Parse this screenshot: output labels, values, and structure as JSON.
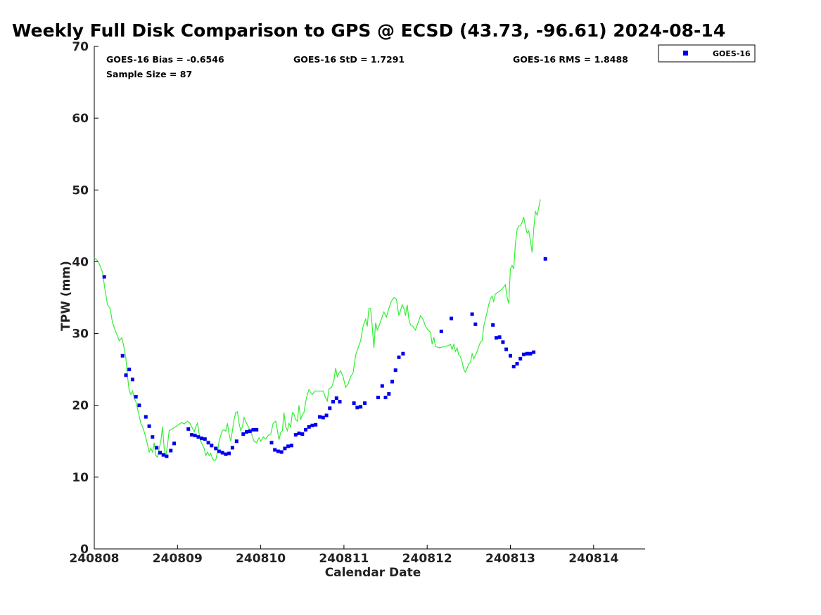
{
  "chart_data": {
    "type": "line",
    "title": "Weekly Full Disk Comparison to GPS @ ECSD (43.73, -96.61) 2024-08-14",
    "xlabel": "Calendar Date",
    "ylabel": "TPW (mm)",
    "x_tick_labels": [
      "240808",
      "240809",
      "240810",
      "240811",
      "240812",
      "240813",
      "240814"
    ],
    "x_tick_values": [
      0,
      1,
      2,
      3,
      4,
      5,
      6
    ],
    "x_axis_note": "x values are days after 240808 00Z",
    "xlim": [
      0,
      6.62
    ],
    "ylim": [
      0,
      70
    ],
    "y_ticks": [
      0,
      10,
      20,
      30,
      40,
      50,
      60,
      70
    ],
    "grid": false,
    "legend_position": "top-right",
    "stats": {
      "bias": "GOES-16 Bias = -0.6546",
      "std": "GOES-16 StD = 1.7291",
      "rms": "GOES-16 RMS = 1.8488",
      "sample": "Sample Size = 87"
    },
    "series": [
      {
        "name": "GPS",
        "style": "line",
        "color": "#33ee33",
        "points": [
          [
            0.0,
            40.6
          ],
          [
            0.05,
            40.0
          ],
          [
            0.1,
            38.5
          ],
          [
            0.13,
            36.0
          ],
          [
            0.16,
            34.0
          ],
          [
            0.19,
            33.5
          ],
          [
            0.22,
            31.5
          ],
          [
            0.25,
            30.5
          ],
          [
            0.28,
            29.6
          ],
          [
            0.3,
            29.0
          ],
          [
            0.33,
            29.4
          ],
          [
            0.35,
            28.5
          ],
          [
            0.38,
            26.5
          ],
          [
            0.4,
            24.0
          ],
          [
            0.42,
            22.0
          ],
          [
            0.44,
            21.5
          ],
          [
            0.46,
            22.0
          ],
          [
            0.48,
            21.0
          ],
          [
            0.5,
            20.5
          ],
          [
            0.52,
            19.5
          ],
          [
            0.54,
            18.5
          ],
          [
            0.56,
            17.5
          ],
          [
            0.58,
            17.0
          ],
          [
            0.6,
            16.3
          ],
          [
            0.62,
            15.5
          ],
          [
            0.64,
            14.5
          ],
          [
            0.66,
            13.5
          ],
          [
            0.68,
            14.0
          ],
          [
            0.7,
            13.5
          ],
          [
            0.72,
            14.8
          ],
          [
            0.74,
            13.0
          ],
          [
            0.76,
            12.8
          ],
          [
            0.78,
            14.0
          ],
          [
            0.8,
            15.0
          ],
          [
            0.82,
            17.0
          ],
          [
            0.84,
            14.0
          ],
          [
            0.86,
            12.9
          ],
          [
            0.88,
            14.5
          ],
          [
            0.9,
            16.5
          ],
          [
            0.95,
            16.8
          ],
          [
            1.0,
            17.2
          ],
          [
            1.05,
            17.6
          ],
          [
            1.08,
            17.4
          ],
          [
            1.12,
            17.8
          ],
          [
            1.15,
            17.5
          ],
          [
            1.18,
            16.8
          ],
          [
            1.2,
            16.3
          ],
          [
            1.22,
            17.0
          ],
          [
            1.24,
            17.5
          ],
          [
            1.26,
            16.0
          ],
          [
            1.28,
            15.0
          ],
          [
            1.3,
            14.5
          ],
          [
            1.32,
            14.0
          ],
          [
            1.34,
            13.0
          ],
          [
            1.36,
            13.5
          ],
          [
            1.38,
            13.0
          ],
          [
            1.4,
            13.3
          ],
          [
            1.42,
            12.6
          ],
          [
            1.44,
            12.3
          ],
          [
            1.46,
            12.4
          ],
          [
            1.48,
            13.5
          ],
          [
            1.5,
            15.0
          ],
          [
            1.52,
            15.8
          ],
          [
            1.54,
            16.5
          ],
          [
            1.56,
            16.6
          ],
          [
            1.58,
            16.4
          ],
          [
            1.6,
            17.5
          ],
          [
            1.62,
            16.0
          ],
          [
            1.64,
            15.0
          ],
          [
            1.66,
            16.5
          ],
          [
            1.68,
            18.0
          ],
          [
            1.7,
            19.0
          ],
          [
            1.72,
            19.1
          ],
          [
            1.74,
            17.5
          ],
          [
            1.76,
            16.5
          ],
          [
            1.78,
            17.0
          ],
          [
            1.8,
            18.3
          ],
          [
            1.83,
            17.5
          ],
          [
            1.86,
            16.8
          ],
          [
            1.89,
            16.0
          ],
          [
            1.92,
            15.0
          ],
          [
            1.95,
            14.8
          ],
          [
            1.98,
            15.5
          ],
          [
            2.0,
            15.0
          ],
          [
            2.03,
            15.6
          ],
          [
            2.06,
            15.3
          ],
          [
            2.09,
            15.8
          ],
          [
            2.12,
            16.0
          ],
          [
            2.15,
            17.5
          ],
          [
            2.18,
            17.8
          ],
          [
            2.2,
            16.5
          ],
          [
            2.22,
            15.2
          ],
          [
            2.24,
            16.2
          ],
          [
            2.26,
            16.5
          ],
          [
            2.28,
            19.0
          ],
          [
            2.3,
            17.0
          ],
          [
            2.32,
            16.5
          ],
          [
            2.34,
            17.5
          ],
          [
            2.36,
            17.0
          ],
          [
            2.38,
            19.0
          ],
          [
            2.4,
            18.8
          ],
          [
            2.42,
            18.0
          ],
          [
            2.44,
            17.8
          ],
          [
            2.46,
            20.0
          ],
          [
            2.48,
            18.0
          ],
          [
            2.5,
            18.7
          ],
          [
            2.52,
            19.0
          ],
          [
            2.54,
            20.5
          ],
          [
            2.56,
            21.5
          ],
          [
            2.58,
            22.2
          ],
          [
            2.6,
            21.8
          ],
          [
            2.62,
            21.5
          ],
          [
            2.65,
            22.0
          ],
          [
            2.7,
            22.0
          ],
          [
            2.75,
            22.0
          ],
          [
            2.78,
            21.0
          ],
          [
            2.8,
            20.6
          ],
          [
            2.82,
            22.3
          ],
          [
            2.85,
            22.5
          ],
          [
            2.88,
            23.5
          ],
          [
            2.9,
            25.2
          ],
          [
            2.92,
            24.0
          ],
          [
            2.94,
            24.5
          ],
          [
            2.96,
            24.8
          ],
          [
            2.99,
            24.0
          ],
          [
            3.02,
            22.5
          ],
          [
            3.05,
            23.0
          ],
          [
            3.08,
            24.0
          ],
          [
            3.11,
            24.5
          ],
          [
            3.14,
            27.0
          ],
          [
            3.17,
            28.0
          ],
          [
            3.2,
            29.0
          ],
          [
            3.23,
            31.0
          ],
          [
            3.26,
            32.0
          ],
          [
            3.28,
            31.0
          ],
          [
            3.3,
            33.5
          ],
          [
            3.32,
            33.5
          ],
          [
            3.34,
            31.0
          ],
          [
            3.36,
            28.0
          ],
          [
            3.38,
            31.5
          ],
          [
            3.4,
            30.5
          ],
          [
            3.42,
            31.0
          ],
          [
            3.45,
            32.0
          ],
          [
            3.48,
            33.0
          ],
          [
            3.51,
            32.3
          ],
          [
            3.54,
            33.5
          ],
          [
            3.57,
            34.5
          ],
          [
            3.6,
            35.0
          ],
          [
            3.63,
            34.8
          ],
          [
            3.66,
            32.5
          ],
          [
            3.68,
            33.2
          ],
          [
            3.7,
            34.0
          ],
          [
            3.72,
            33.5
          ],
          [
            3.74,
            32.5
          ],
          [
            3.76,
            34.0
          ],
          [
            3.78,
            32.0
          ],
          [
            3.8,
            31.2
          ],
          [
            3.83,
            31.0
          ],
          [
            3.86,
            30.5
          ],
          [
            3.89,
            31.5
          ],
          [
            3.92,
            32.5
          ],
          [
            3.95,
            32.0
          ],
          [
            3.98,
            31.0
          ],
          [
            4.01,
            30.5
          ],
          [
            4.04,
            30.2
          ],
          [
            4.06,
            28.5
          ],
          [
            4.08,
            29.5
          ],
          [
            4.1,
            28.2
          ],
          [
            4.15,
            28.0
          ],
          [
            4.2,
            28.2
          ],
          [
            4.25,
            28.3
          ],
          [
            4.28,
            28.5
          ],
          [
            4.3,
            27.8
          ],
          [
            4.32,
            28.5
          ],
          [
            4.34,
            27.5
          ],
          [
            4.36,
            28.0
          ],
          [
            4.38,
            27.0
          ],
          [
            4.4,
            26.8
          ],
          [
            4.42,
            26.0
          ],
          [
            4.44,
            25.0
          ],
          [
            4.46,
            24.6
          ],
          [
            4.48,
            25.2
          ],
          [
            4.5,
            25.8
          ],
          [
            4.52,
            26.0
          ],
          [
            4.54,
            27.2
          ],
          [
            4.56,
            26.5
          ],
          [
            4.58,
            27.0
          ],
          [
            4.6,
            27.5
          ],
          [
            4.62,
            28.2
          ],
          [
            4.64,
            28.8
          ],
          [
            4.66,
            29.0
          ],
          [
            4.68,
            31.0
          ],
          [
            4.7,
            32.0
          ],
          [
            4.72,
            33.0
          ],
          [
            4.74,
            34.0
          ],
          [
            4.76,
            34.8
          ],
          [
            4.78,
            35.2
          ],
          [
            4.8,
            34.5
          ],
          [
            4.82,
            35.5
          ],
          [
            4.86,
            35.8
          ],
          [
            4.9,
            36.2
          ],
          [
            4.94,
            36.8
          ],
          [
            4.96,
            35.0
          ],
          [
            4.98,
            34.2
          ],
          [
            5.0,
            39.0
          ],
          [
            5.02,
            39.5
          ],
          [
            5.04,
            39.0
          ],
          [
            5.06,
            42.5
          ],
          [
            5.08,
            44.5
          ],
          [
            5.1,
            45.0
          ],
          [
            5.12,
            45.0
          ],
          [
            5.14,
            45.5
          ],
          [
            5.16,
            46.2
          ],
          [
            5.18,
            45.0
          ],
          [
            5.2,
            44.0
          ],
          [
            5.22,
            44.3
          ],
          [
            5.24,
            43.0
          ],
          [
            5.26,
            41.3
          ],
          [
            5.28,
            44.5
          ],
          [
            5.3,
            47.0
          ],
          [
            5.32,
            46.5
          ],
          [
            5.34,
            47.5
          ],
          [
            5.36,
            48.7
          ]
        ]
      },
      {
        "name": "GOES-16",
        "style": "marker",
        "color": "#0000ee",
        "points": [
          [
            0.12,
            37.9
          ],
          [
            0.34,
            26.9
          ],
          [
            0.38,
            24.2
          ],
          [
            0.42,
            25.0
          ],
          [
            0.46,
            23.6
          ],
          [
            0.5,
            21.2
          ],
          [
            0.54,
            20.0
          ],
          [
            0.62,
            18.4
          ],
          [
            0.66,
            17.1
          ],
          [
            0.7,
            15.6
          ],
          [
            0.75,
            14.1
          ],
          [
            0.79,
            13.4
          ],
          [
            0.83,
            13.1
          ],
          [
            0.87,
            12.9
          ],
          [
            0.92,
            13.7
          ],
          [
            0.96,
            14.7
          ],
          [
            1.13,
            16.7
          ],
          [
            1.17,
            15.9
          ],
          [
            1.21,
            15.8
          ],
          [
            1.25,
            15.6
          ],
          [
            1.29,
            15.4
          ],
          [
            1.33,
            15.3
          ],
          [
            1.37,
            14.8
          ],
          [
            1.41,
            14.4
          ],
          [
            1.46,
            14.0
          ],
          [
            1.5,
            13.6
          ],
          [
            1.54,
            13.4
          ],
          [
            1.58,
            13.2
          ],
          [
            1.62,
            13.3
          ],
          [
            1.66,
            14.1
          ],
          [
            1.71,
            15.0
          ],
          [
            1.79,
            16.0
          ],
          [
            1.83,
            16.3
          ],
          [
            1.87,
            16.4
          ],
          [
            1.91,
            16.6
          ],
          [
            1.95,
            16.6
          ],
          [
            2.13,
            14.8
          ],
          [
            2.17,
            13.8
          ],
          [
            2.21,
            13.6
          ],
          [
            2.25,
            13.5
          ],
          [
            2.29,
            14.0
          ],
          [
            2.33,
            14.3
          ],
          [
            2.37,
            14.4
          ],
          [
            2.42,
            15.9
          ],
          [
            2.46,
            16.1
          ],
          [
            2.5,
            16.0
          ],
          [
            2.54,
            16.6
          ],
          [
            2.58,
            17.0
          ],
          [
            2.62,
            17.2
          ],
          [
            2.66,
            17.3
          ],
          [
            2.71,
            18.4
          ],
          [
            2.75,
            18.3
          ],
          [
            2.79,
            18.6
          ],
          [
            2.83,
            19.6
          ],
          [
            2.87,
            20.5
          ],
          [
            2.91,
            21.0
          ],
          [
            2.95,
            20.5
          ],
          [
            3.12,
            20.3
          ],
          [
            3.16,
            19.7
          ],
          [
            3.2,
            19.8
          ],
          [
            3.25,
            20.3
          ],
          [
            3.41,
            21.1
          ],
          [
            3.46,
            22.7
          ],
          [
            3.5,
            21.1
          ],
          [
            3.54,
            21.6
          ],
          [
            3.58,
            23.3
          ],
          [
            3.62,
            24.9
          ],
          [
            3.66,
            26.7
          ],
          [
            3.71,
            27.2
          ],
          [
            4.17,
            30.3
          ],
          [
            4.29,
            32.1
          ],
          [
            4.54,
            32.7
          ],
          [
            4.58,
            31.3
          ],
          [
            4.79,
            31.2
          ],
          [
            4.83,
            29.4
          ],
          [
            4.87,
            29.5
          ],
          [
            4.91,
            28.8
          ],
          [
            4.95,
            27.8
          ],
          [
            5.0,
            26.9
          ],
          [
            5.04,
            25.4
          ],
          [
            5.08,
            25.8
          ],
          [
            5.12,
            26.5
          ],
          [
            5.16,
            27.1
          ],
          [
            5.2,
            27.2
          ],
          [
            5.24,
            27.2
          ],
          [
            5.28,
            27.4
          ],
          [
            5.42,
            40.4
          ]
        ]
      }
    ]
  },
  "legend": {
    "label": "GOES-16",
    "color": "#0000ee"
  }
}
